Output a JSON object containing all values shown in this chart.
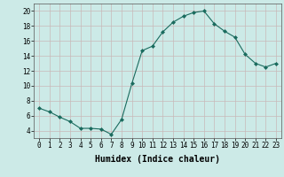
{
  "x": [
    0,
    1,
    2,
    3,
    4,
    5,
    6,
    7,
    8,
    9,
    10,
    11,
    12,
    13,
    14,
    15,
    16,
    17,
    18,
    19,
    20,
    21,
    22,
    23
  ],
  "y": [
    7,
    6.5,
    5.8,
    5.2,
    4.3,
    4.3,
    4.2,
    3.5,
    5.5,
    10.3,
    14.7,
    15.3,
    17.2,
    18.5,
    19.3,
    19.8,
    20.0,
    18.3,
    17.3,
    16.5,
    14.2,
    13.0,
    12.5,
    13.0
  ],
  "line_color": "#1a6b5e",
  "marker": "D",
  "marker_size": 2.0,
  "bg_color": "#cceae7",
  "grid_color": "#c8b8b8",
  "xlabel": "Humidex (Indice chaleur)",
  "xlim": [
    -0.5,
    23.5
  ],
  "ylim": [
    3,
    21
  ],
  "yticks": [
    4,
    6,
    8,
    10,
    12,
    14,
    16,
    18,
    20
  ],
  "xticks": [
    0,
    1,
    2,
    3,
    4,
    5,
    6,
    7,
    8,
    9,
    10,
    11,
    12,
    13,
    14,
    15,
    16,
    17,
    18,
    19,
    20,
    21,
    22,
    23
  ],
  "xlabel_fontsize": 7,
  "tick_fontsize": 5.5,
  "linewidth": 0.8
}
